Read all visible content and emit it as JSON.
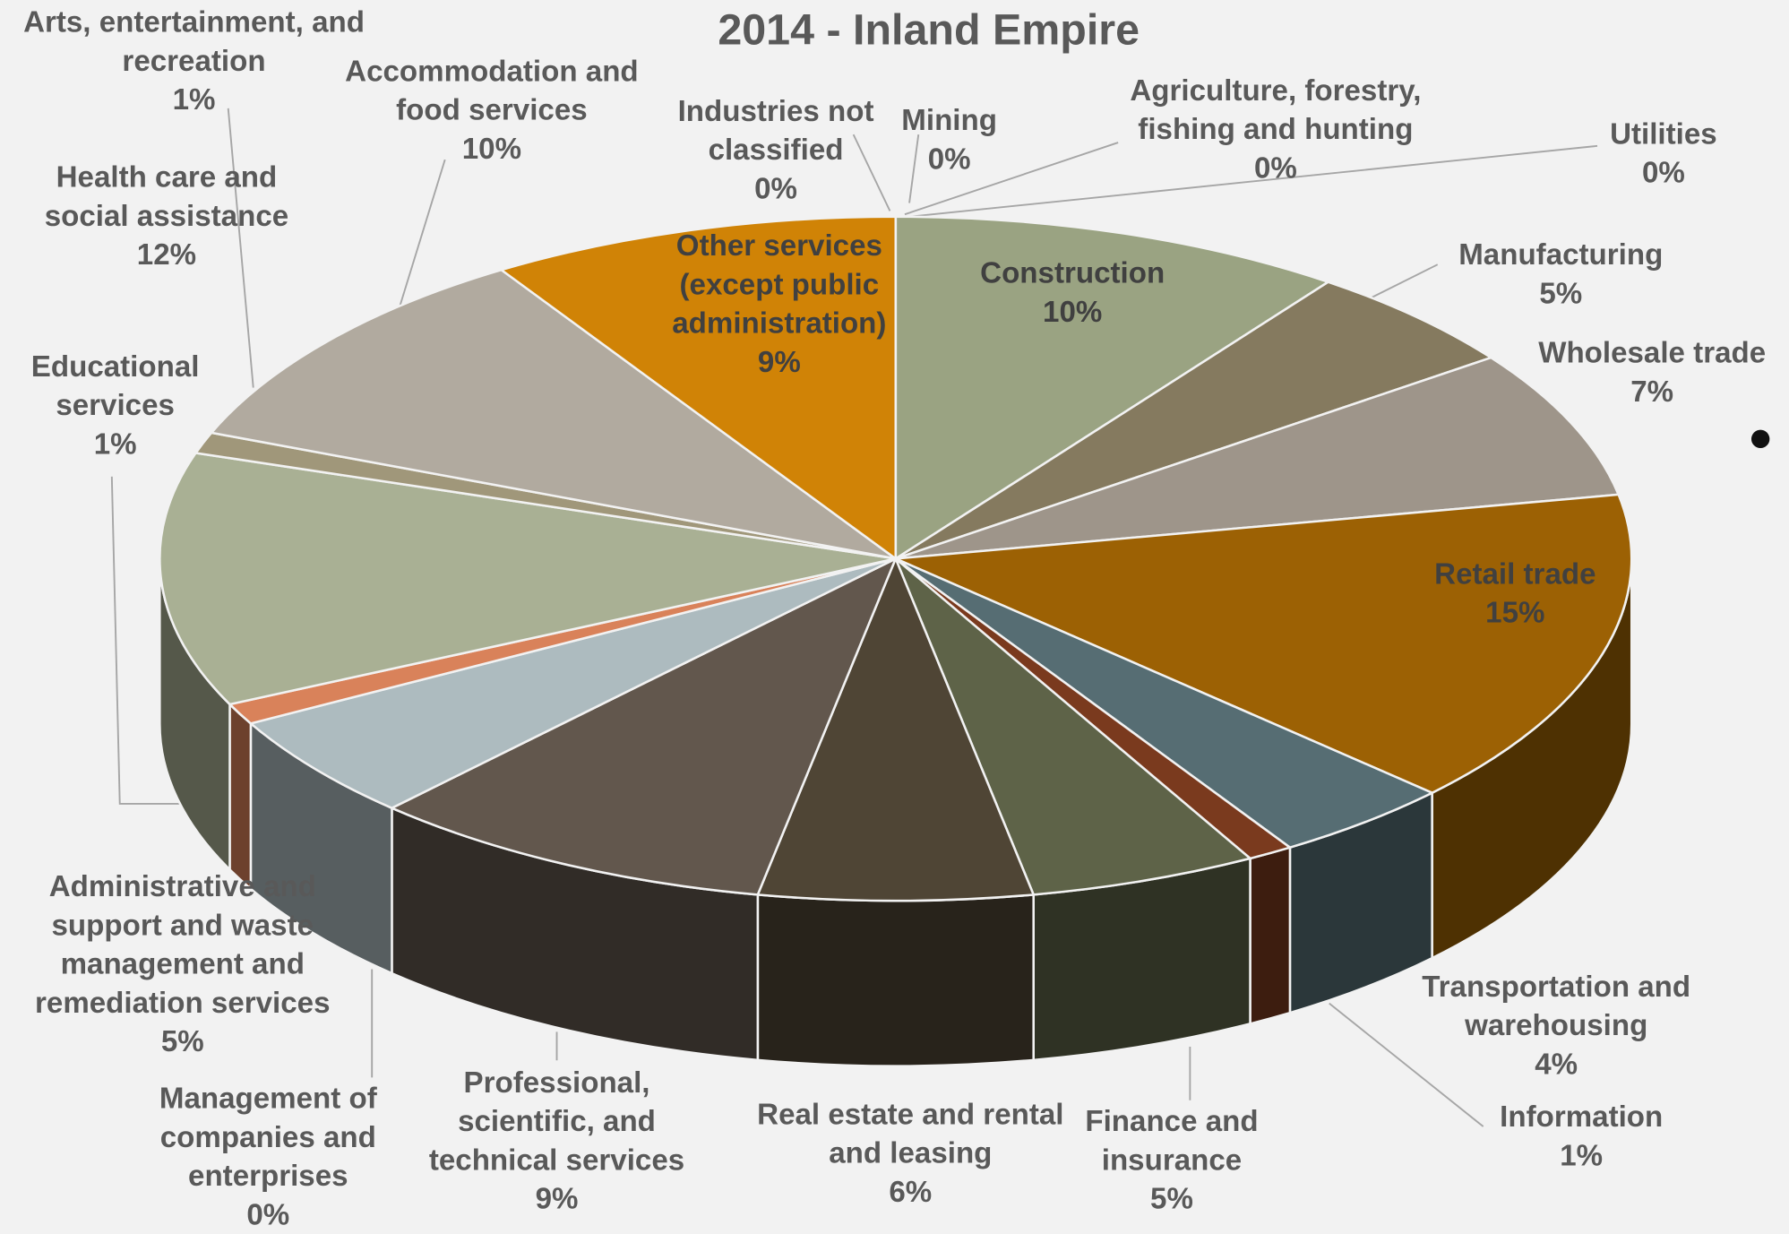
{
  "chart_data": {
    "type": "pie3d",
    "title": "2014 - Inland Empire",
    "categories": [
      "Mining",
      "Agriculture, forestry, fishing and hunting",
      "Utilities",
      "Construction",
      "Manufacturing",
      "Wholesale trade",
      "Retail trade",
      "Transportation and warehousing",
      "Information",
      "Finance and insurance",
      "Real estate and rental and leasing",
      "Professional, scientific, and technical services",
      "Management of companies and enterprises",
      "Administrative and support and waste management and remediation services",
      "Educational services",
      "Health care and social assistance",
      "Arts, entertainment, and recreation",
      "Accommodation and food services",
      "Other services (except public administration)",
      "Industries not classified"
    ],
    "values": [
      0,
      0,
      0,
      10,
      5,
      7,
      15,
      4,
      1,
      5,
      6,
      9,
      0,
      5,
      1,
      12,
      1,
      10,
      9,
      0
    ],
    "value_labels": [
      "0%",
      "0%",
      "0%",
      "10%",
      "5%",
      "7%",
      "15%",
      "4%",
      "1%",
      "5%",
      "6%",
      "9%",
      "0%",
      "5%",
      "1%",
      "12%",
      "1%",
      "10%",
      "9%",
      "0%"
    ],
    "colors": [
      "#d9632a",
      "#c9a46a",
      "#e8e0d0",
      "#9aa382",
      "#857a5f",
      "#9e958a",
      "#9c6104",
      "#566d73",
      "#7a3a1e",
      "#5e6348",
      "#4f4535",
      "#62574d",
      "#f0a83c",
      "#adbbbf",
      "#d9825a",
      "#a9b094",
      "#a0977a",
      "#b1aa9f",
      "#d08306",
      "#e0e0e0"
    ]
  }
}
